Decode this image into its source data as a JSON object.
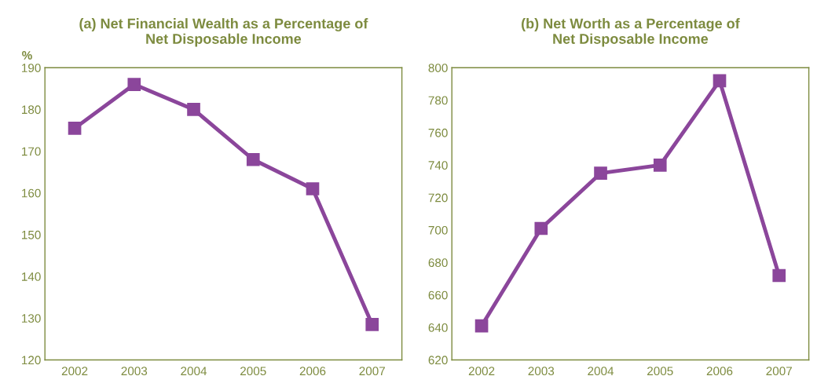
{
  "chart_data": [
    {
      "type": "line",
      "title": "(a) Net Financial Wealth as a Percentage of\nNet Disposable Income",
      "ylabel": "%",
      "categories": [
        "2002",
        "2003",
        "2004",
        "2005",
        "2006",
        "2007"
      ],
      "series": [
        {
          "color": "#8b469b",
          "values": [
            175.5,
            186,
            180,
            168,
            161,
            128.5
          ]
        }
      ],
      "ylim": [
        120,
        190
      ],
      "yticks": [
        120,
        130,
        140,
        150,
        160,
        170,
        180,
        190
      ],
      "grid": false,
      "legend": false,
      "marker": "square",
      "line_style": "solid"
    },
    {
      "type": "line",
      "title": "(b) Net Worth as a Percentage of\nNet Disposable Income",
      "categories": [
        "2002",
        "2003",
        "2004",
        "2005",
        "2006",
        "2007"
      ],
      "series": [
        {
          "color": "#8b469b",
          "values": [
            641,
            701,
            735,
            740,
            792,
            672
          ]
        }
      ],
      "ylim": [
        620,
        800
      ],
      "yticks": [
        620,
        640,
        660,
        680,
        700,
        720,
        740,
        760,
        780,
        800
      ],
      "grid": false,
      "legend": false,
      "marker": "square",
      "line_style": "solid"
    }
  ]
}
